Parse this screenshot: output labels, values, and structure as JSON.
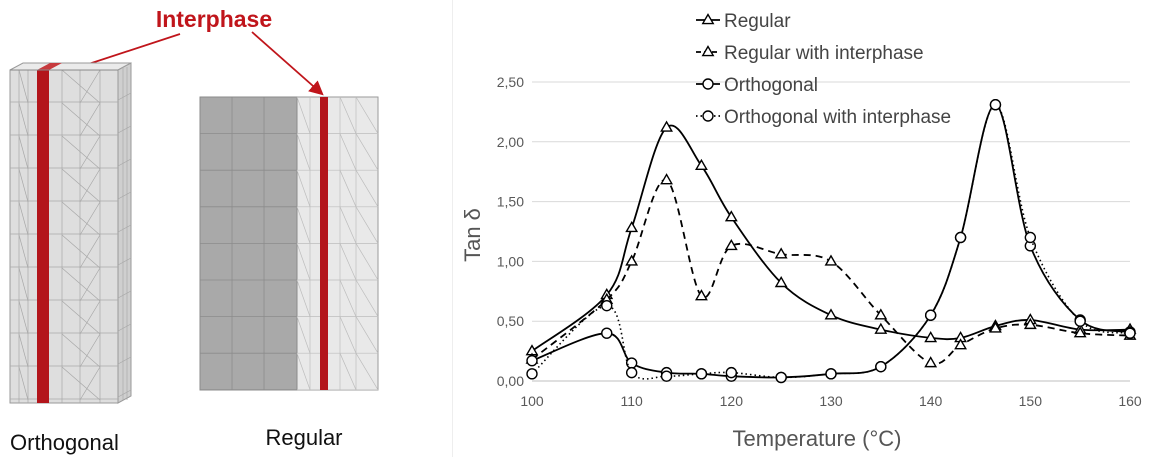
{
  "models": {
    "title": "Interphase",
    "title_color": "#c0151b",
    "interphase_color": "#b3151b",
    "left_label": "Orthogonal",
    "right_label": "Regular"
  },
  "chart_data": {
    "type": "line",
    "xlabel": "Temperature (°C)",
    "ylabel": "Tan δ",
    "xlim": [
      100,
      160
    ],
    "ylim": [
      0,
      2.5
    ],
    "x_ticks": [
      100,
      110,
      120,
      130,
      140,
      150,
      160
    ],
    "x_tick_labels": [
      "100",
      "110",
      "120",
      "130",
      "140",
      "150",
      "160"
    ],
    "y_ticks": [
      0,
      0.5,
      1,
      1.5,
      2,
      2.5
    ],
    "y_tick_labels": [
      "0,00",
      "0,50",
      "1,00",
      "1,50",
      "2,00",
      "2,50"
    ],
    "grid": "horizontal",
    "legend_position": "top",
    "series": [
      {
        "name": "Regular",
        "marker": "triangle",
        "line": "solid",
        "points": [
          [
            100,
            0.25
          ],
          [
            107.5,
            0.72
          ],
          [
            110,
            1.28
          ],
          [
            113.5,
            2.12
          ],
          [
            117,
            1.8
          ],
          [
            120,
            1.37
          ],
          [
            125,
            0.82
          ],
          [
            130,
            0.55
          ],
          [
            135,
            0.43
          ],
          [
            140,
            0.36
          ],
          [
            143,
            0.36
          ],
          [
            146.5,
            0.46
          ],
          [
            150,
            0.51
          ],
          [
            155,
            0.43
          ],
          [
            160,
            0.43
          ]
        ]
      },
      {
        "name": "Regular with interphase",
        "marker": "triangle",
        "line": "dashed",
        "points": [
          [
            100,
            0.18
          ],
          [
            107.5,
            0.68
          ],
          [
            110,
            1.0
          ],
          [
            113.5,
            1.68
          ],
          [
            117,
            0.71
          ],
          [
            120,
            1.13
          ],
          [
            125,
            1.06
          ],
          [
            130,
            1.0
          ],
          [
            135,
            0.55
          ],
          [
            140,
            0.15
          ],
          [
            143,
            0.3
          ],
          [
            146.5,
            0.44
          ],
          [
            150,
            0.47
          ],
          [
            155,
            0.4
          ],
          [
            160,
            0.38
          ]
        ]
      },
      {
        "name": "Orthogonal",
        "marker": "circle",
        "line": "solid",
        "points": [
          [
            100,
            0.17
          ],
          [
            107.5,
            0.4
          ],
          [
            110,
            0.15
          ],
          [
            113.5,
            0.07
          ],
          [
            117,
            0.06
          ],
          [
            120,
            0.04
          ],
          [
            125,
            0.03
          ],
          [
            130,
            0.06
          ],
          [
            135,
            0.12
          ],
          [
            140,
            0.55
          ],
          [
            143,
            1.2
          ],
          [
            146.5,
            2.31
          ],
          [
            150,
            1.13
          ],
          [
            155,
            0.51
          ],
          [
            160,
            0.41
          ]
        ]
      },
      {
        "name": "Orthogonal with interphase",
        "marker": "circle",
        "line": "dotted",
        "points": [
          [
            100,
            0.06
          ],
          [
            107.5,
            0.63
          ],
          [
            110,
            0.07
          ],
          [
            113.5,
            0.04
          ],
          [
            117,
            0.06
          ],
          [
            120,
            0.07
          ],
          [
            125,
            0.03
          ],
          [
            130,
            0.06
          ],
          [
            135,
            0.12
          ],
          [
            140,
            0.55
          ],
          [
            143,
            1.2
          ],
          [
            146.5,
            2.31
          ],
          [
            150,
            1.2
          ],
          [
            155,
            0.5
          ],
          [
            160,
            0.4
          ]
        ]
      }
    ]
  }
}
